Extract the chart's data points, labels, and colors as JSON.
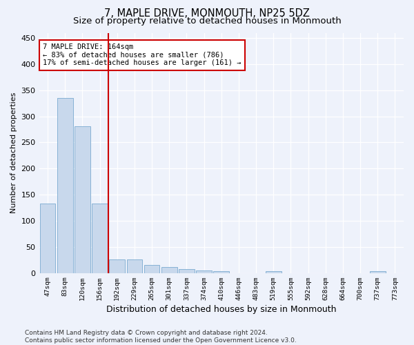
{
  "title": "7, MAPLE DRIVE, MONMOUTH, NP25 5DZ",
  "subtitle": "Size of property relative to detached houses in Monmouth",
  "xlabel": "Distribution of detached houses by size in Monmouth",
  "ylabel": "Number of detached properties",
  "categories": [
    "47sqm",
    "83sqm",
    "120sqm",
    "156sqm",
    "192sqm",
    "229sqm",
    "265sqm",
    "301sqm",
    "337sqm",
    "374sqm",
    "410sqm",
    "446sqm",
    "483sqm",
    "519sqm",
    "555sqm",
    "592sqm",
    "628sqm",
    "664sqm",
    "700sqm",
    "737sqm",
    "773sqm"
  ],
  "values": [
    133,
    335,
    281,
    133,
    26,
    26,
    15,
    11,
    8,
    5,
    3,
    0,
    0,
    4,
    0,
    0,
    0,
    0,
    0,
    3,
    0
  ],
  "bar_color": "#c8d8ec",
  "bar_edge_color": "#7aaad0",
  "red_line_x": 3.5,
  "red_line_color": "#cc0000",
  "annotation_text": "7 MAPLE DRIVE: 164sqm\n← 83% of detached houses are smaller (786)\n17% of semi-detached houses are larger (161) →",
  "annotation_box_color": "#ffffff",
  "annotation_box_edge": "#cc0000",
  "ylim": [
    0,
    460
  ],
  "yticks": [
    0,
    50,
    100,
    150,
    200,
    250,
    300,
    350,
    400,
    450
  ],
  "footer_line1": "Contains HM Land Registry data © Crown copyright and database right 2024.",
  "footer_line2": "Contains public sector information licensed under the Open Government Licence v3.0.",
  "bg_color": "#eef2fb",
  "grid_color": "#ffffff",
  "title_fontsize": 10.5,
  "subtitle_fontsize": 9.5,
  "xlabel_fontsize": 9,
  "ylabel_fontsize": 8,
  "footer_fontsize": 6.5
}
